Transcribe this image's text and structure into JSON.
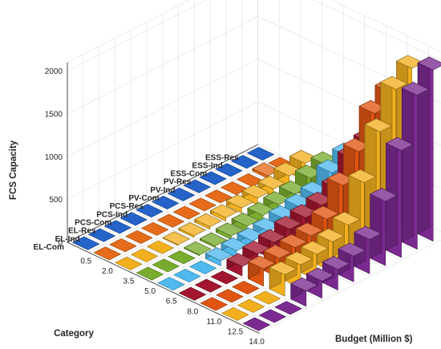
{
  "chart_data": {
    "type": "bar3d",
    "title": "",
    "zlabel": "FCS Capacity",
    "xlabel": "Budget (Million $)",
    "ylabel": "Category",
    "budgets": [
      "0.5",
      "2.0",
      "3.5",
      "5.0",
      "6.5",
      "8.0",
      "11.0",
      "12.5",
      "14.0"
    ],
    "categories": [
      "ESS-Res",
      "ESS-Ind",
      "ESS-Com",
      "PV-Res",
      "PV-Ind",
      "PV-Com",
      "PCS-Res",
      "PCS-Ind",
      "PCS-Com",
      "EL-Res",
      "EL-Ind",
      "EL-Com"
    ],
    "z_ticks": [
      "0",
      "500",
      "1000",
      "1500",
      "2000"
    ],
    "zlim": [
      0,
      2100
    ],
    "grid": true,
    "colors": [
      "#2563c8",
      "#e66b1a",
      "#f2b01e",
      "#7aac2e",
      "#4fb9ee",
      "#a3162f",
      "#e05512",
      "#f2b01e",
      "#7b2a91"
    ],
    "values": [
      [
        0,
        0,
        0,
        0,
        0,
        0,
        0,
        0,
        0,
        0,
        0,
        0
      ],
      [
        0,
        30,
        0,
        0,
        0,
        0,
        0,
        0,
        0,
        0,
        0,
        0
      ],
      [
        200,
        150,
        90,
        80,
        60,
        40,
        30,
        20,
        10,
        0,
        0,
        0
      ],
      [
        300,
        240,
        150,
        120,
        90,
        60,
        40,
        20,
        10,
        0,
        0,
        0
      ],
      [
        520,
        420,
        260,
        210,
        170,
        120,
        100,
        80,
        60,
        0,
        0,
        0
      ],
      [
        800,
        700,
        450,
        350,
        300,
        260,
        200,
        160,
        110,
        0,
        0,
        0
      ],
      [
        1500,
        1350,
        1000,
        700,
        400,
        300,
        260,
        230,
        200,
        0,
        0,
        0
      ],
      [
        1900,
        1750,
        1350,
        850,
        450,
        350,
        300,
        270,
        250,
        0,
        0,
        0
      ],
      [
        2000,
        1800,
        1250,
        750,
        400,
        300,
        240,
        200,
        180,
        0,
        0,
        0
      ]
    ]
  }
}
